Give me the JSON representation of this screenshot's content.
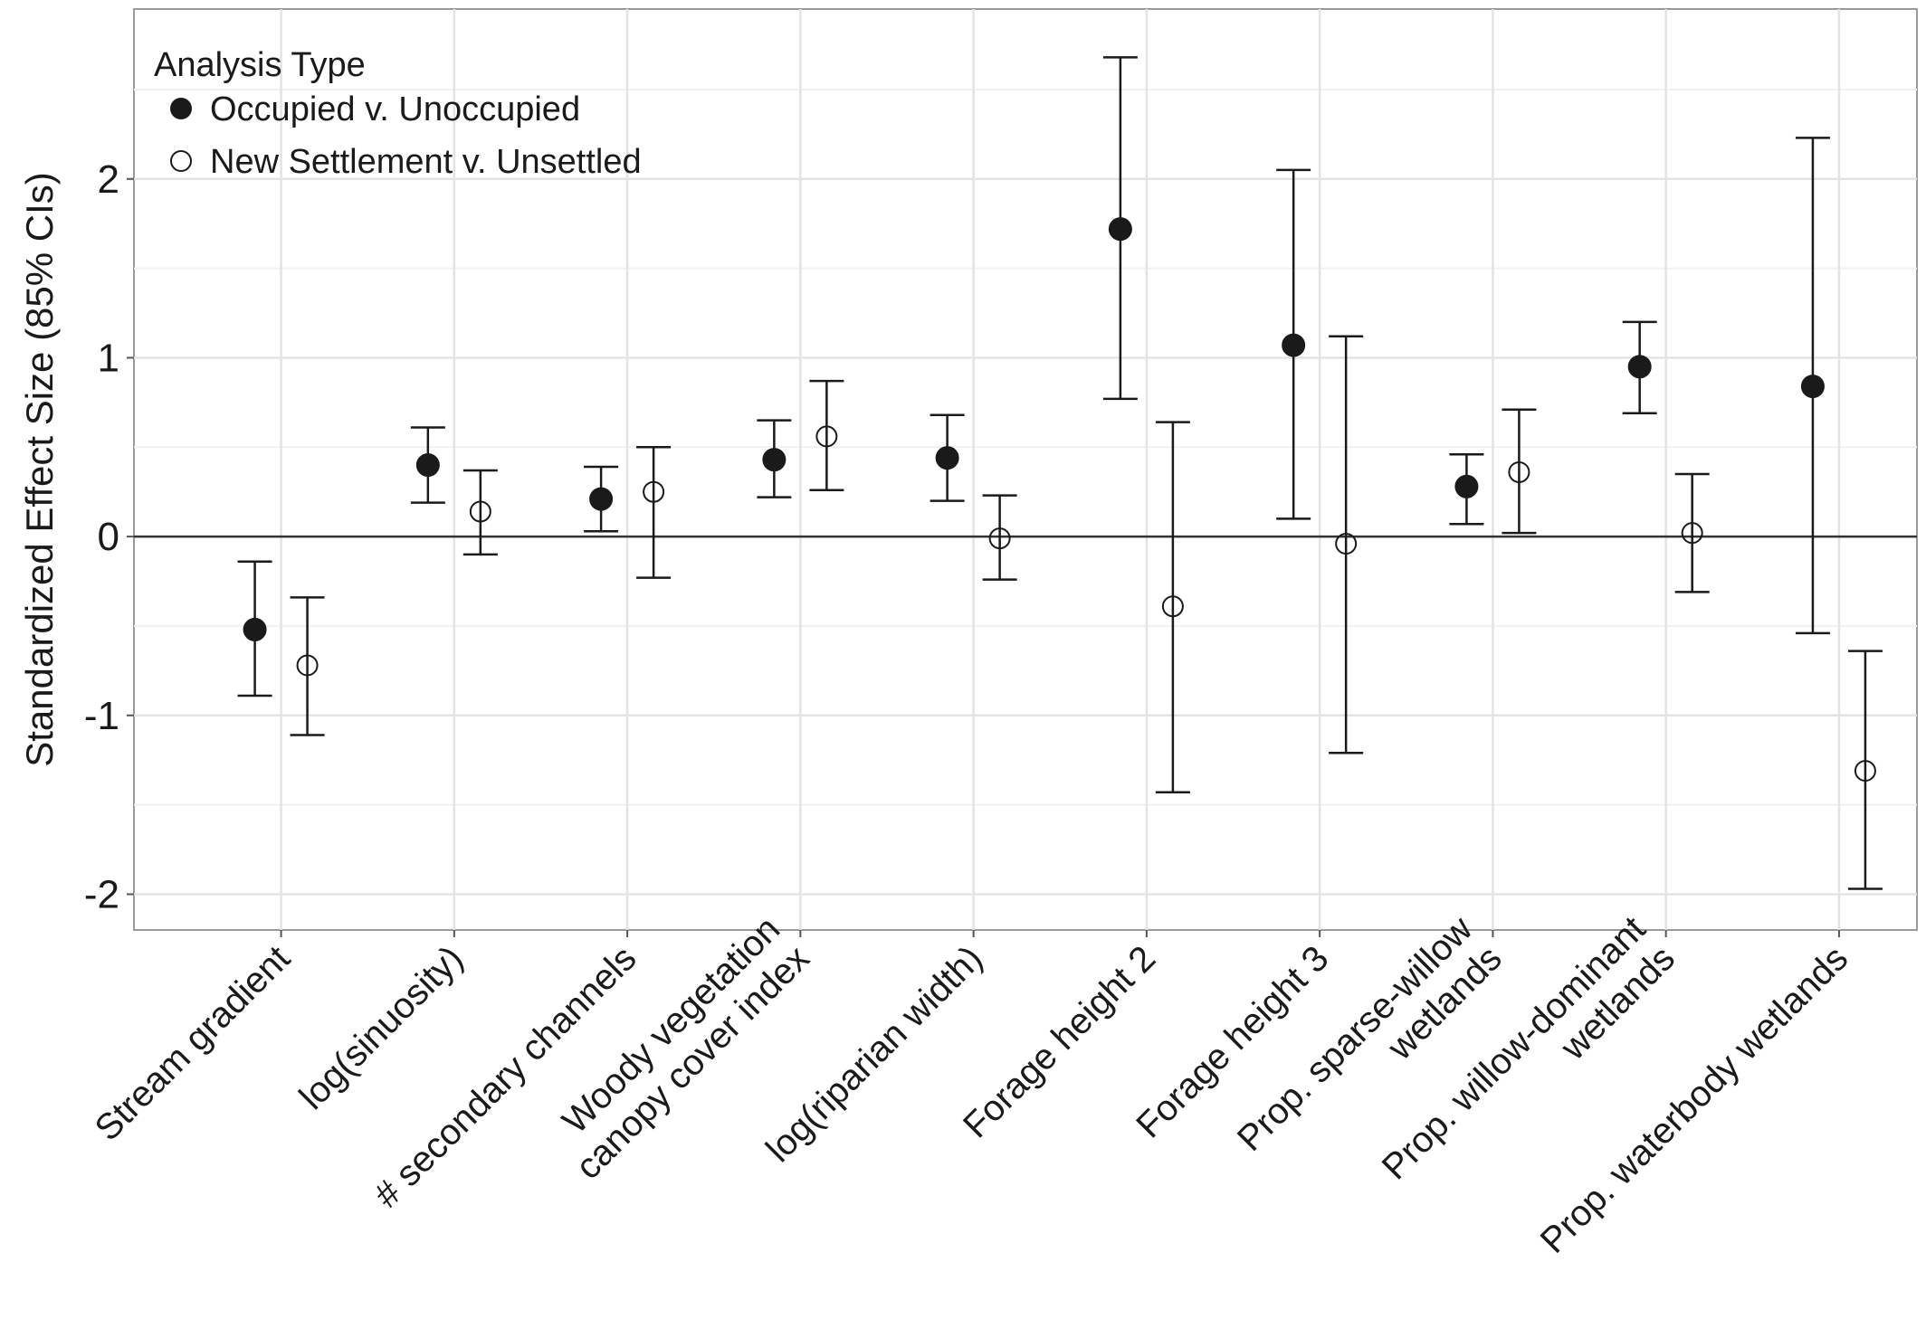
{
  "chart_data": {
    "type": "scatter",
    "subtype": "point-with-error-bars",
    "title": "",
    "xlabel": "",
    "ylabel": "Standardized Effect Size (85% CIs)",
    "ylim": [
      -2.2,
      2.95
    ],
    "y_ticks": [
      -2,
      -1,
      0,
      1,
      2
    ],
    "y_tick_labels": [
      "-2",
      "-1",
      "0",
      "1",
      "2"
    ],
    "reference_line_y": 0,
    "grid": true,
    "categories": [
      [
        "Stream gradient"
      ],
      [
        "log(sinuosity)"
      ],
      [
        "# secondary channels"
      ],
      [
        "Woody vegetation",
        "canopy cover index"
      ],
      [
        "log(riparian width)"
      ],
      [
        "Forage height 2"
      ],
      [
        "Forage height 3"
      ],
      [
        "Prop. sparse-willow",
        "wetlands"
      ],
      [
        "Prop. willow-dominant",
        "wetlands"
      ],
      [
        "Prop. waterbody wetlands"
      ]
    ],
    "legend": {
      "title": "Analysis Type",
      "position": "top-left"
    },
    "series": [
      {
        "name": "Occupied v. Unoccupied",
        "marker": "filled-circle",
        "color": "#1a1a1a",
        "values": [
          -0.52,
          0.4,
          0.21,
          0.43,
          0.44,
          1.72,
          1.07,
          0.28,
          0.95,
          0.84
        ],
        "lower": [
          -0.89,
          0.19,
          0.03,
          0.22,
          0.2,
          0.77,
          0.1,
          0.07,
          0.69,
          -0.54
        ],
        "upper": [
          -0.14,
          0.61,
          0.39,
          0.65,
          0.68,
          2.68,
          2.05,
          0.46,
          1.2,
          2.23
        ]
      },
      {
        "name": "New Settlement v. Unsettled",
        "marker": "open-circle",
        "color": "#1a1a1a",
        "values": [
          -0.72,
          0.14,
          0.25,
          0.56,
          -0.01,
          -0.39,
          -0.04,
          0.36,
          0.02,
          -1.31
        ],
        "lower": [
          -1.11,
          -0.1,
          -0.23,
          0.26,
          -0.24,
          -1.43,
          -1.21,
          0.02,
          -0.31,
          -1.97
        ],
        "upper": [
          -0.34,
          0.37,
          0.5,
          0.87,
          0.23,
          0.64,
          1.12,
          0.71,
          0.35,
          -0.64
        ]
      }
    ]
  }
}
